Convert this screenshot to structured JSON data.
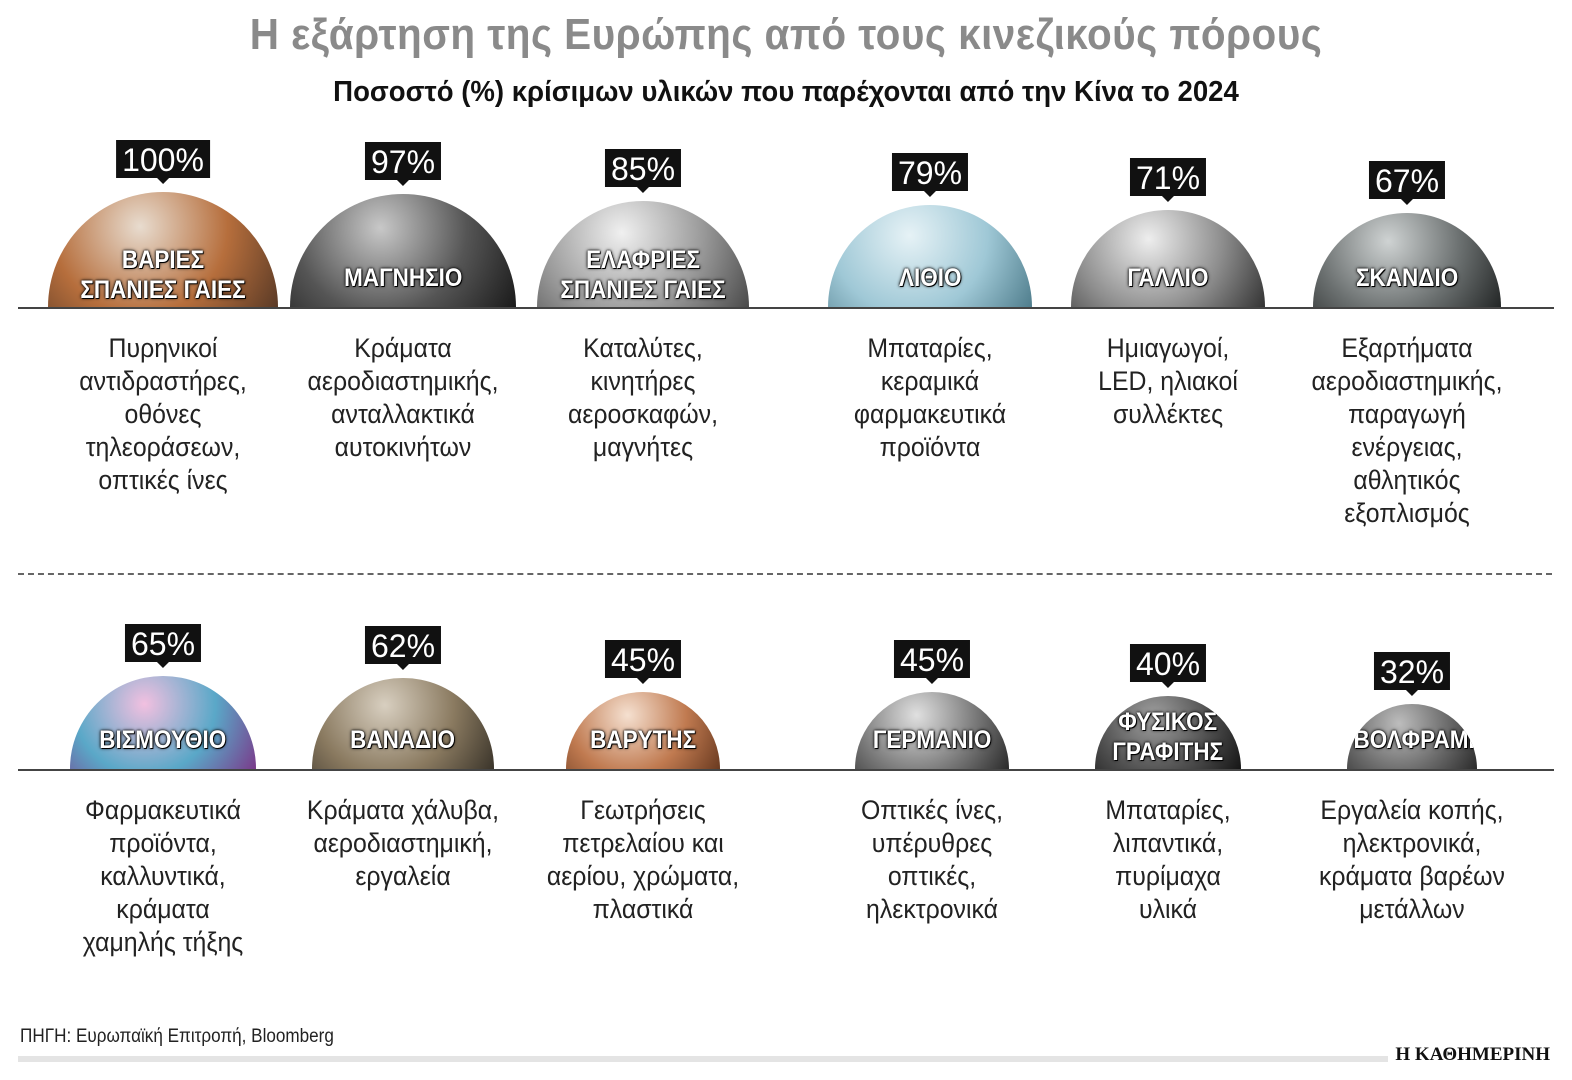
{
  "header": {
    "title": "Η εξάρτηση της Ευρώπης από τους κινεζικούς πόρους",
    "subtitle": "Ποσοστό (%) κρίσιμων υλικών που παρέχονται από την Κίνα το 2024"
  },
  "chart_data": {
    "type": "bar",
    "unit": "%",
    "items": [
      {
        "name": "ΒΑΡΙΕΣ\nΣΠΑΝΙΕΣ ΓΑΙΕΣ",
        "value": 100,
        "label": "100%",
        "uses": "Πυρηνικοί\nαντιδραστήρες,\nοθόνες\nτηλεοράσεων,\nοπτικές ίνες",
        "colors": [
          "#e8dccf",
          "#b66e3c",
          "#5a3a26"
        ]
      },
      {
        "name": "ΜΑΓΝΗΣΙΟ",
        "value": 97,
        "label": "97%",
        "uses": "Κράματα\nαεροδιαστημικής,\nανταλλακτικά\nαυτοκινήτων",
        "colors": [
          "#c8c8c8",
          "#555555",
          "#1a1a1a"
        ]
      },
      {
        "name": "ΕΛΑΦΡΙΕΣ\nΣΠΑΝΙΕΣ ΓΑΙΕΣ",
        "value": 85,
        "label": "85%",
        "uses": "Καταλύτες,\nκινητήρες\nαεροσκαφών,\nμαγνήτες",
        "colors": [
          "#f0f0f0",
          "#9a9a9a",
          "#4a4a4a"
        ]
      },
      {
        "name": "ΛΙΘΙΟ",
        "value": 79,
        "label": "79%",
        "uses": "Μπαταρίες,\nκεραμικά\nφαρμακευτικά\nπροϊόντα",
        "colors": [
          "#e6f2f6",
          "#9fc8d6",
          "#4f7d8c"
        ]
      },
      {
        "name": "ΓΑΛΛΙΟ",
        "value": 71,
        "label": "71%",
        "uses": "Ημιαγωγοί,\nLED, ηλιακοί\nσυλλέκτες",
        "colors": [
          "#eeeeee",
          "#8d8d8d",
          "#333333"
        ]
      },
      {
        "name": "ΣΚΑΝΔΙΟ",
        "value": 67,
        "label": "67%",
        "uses": "Εξαρτήματα\nαεροδιαστημικής,\nπαραγωγή\nενέργειας,\nαθλητικός\nεξοπλισμός",
        "colors": [
          "#cfd3d3",
          "#6b7070",
          "#232626"
        ]
      },
      {
        "name": "ΒΙΣΜΟΥΘΙΟ",
        "value": 65,
        "label": "65%",
        "uses": "Φαρμακευτικά\nπροϊόντα,\nκαλλυντικά,\nκράματα\nχαμηλής τήξης",
        "colors": [
          "#f2c0e0",
          "#5aa8c8",
          "#7a3a8a"
        ]
      },
      {
        "name": "ΒΑΝΑΔΙΟ",
        "value": 62,
        "label": "62%",
        "uses": "Κράματα χάλυβα,\nαεροδιαστημική,\nεργαλεία",
        "colors": [
          "#d8cfc0",
          "#8a7a60",
          "#3a342a"
        ]
      },
      {
        "name": "ΒΑΡΥΤΗΣ",
        "value": 45,
        "label": "45%",
        "uses": "Γεωτρήσεις\nπετρελαίου και\nαερίου, χρώματα,\nπλαστικά",
        "colors": [
          "#f5e0d0",
          "#c07a50",
          "#6a3a20"
        ]
      },
      {
        "name": "ΓΕΡΜΑΝΙΟ",
        "value": 45,
        "label": "45%",
        "uses": "Οπτικές ίνες,\nυπέρυθρες\nοπτικές,\nηλεκτρονικά",
        "colors": [
          "#e0e0e0",
          "#7a7a7a",
          "#2a2a2a"
        ]
      },
      {
        "name": "ΦΥΣΙΚΟΣ\nΓΡΑΦΙΤΗΣ",
        "value": 40,
        "label": "40%",
        "uses": "Μπαταρίες,\nλιπαντικά,\nπυρίμαχα\nυλικά",
        "colors": [
          "#a0a0a0",
          "#505050",
          "#151515"
        ]
      },
      {
        "name": "ΒΟΛΦΡΑΜΙΟ",
        "value": 32,
        "label": "32%",
        "uses": "Εργαλεία κοπής,\nηλεκτρονικά,\nκράματα βαρέων\nμετάλλων",
        "colors": [
          "#bdbdbd",
          "#6a6a6a",
          "#2a2a2a"
        ]
      }
    ]
  },
  "footer": {
    "source": "ΠΗΓΗ: Ευρωπαϊκή Επιτροπή, Bloomberg",
    "logo": "Η ΚΑΘΗΜΕΡΙΝΗ"
  }
}
